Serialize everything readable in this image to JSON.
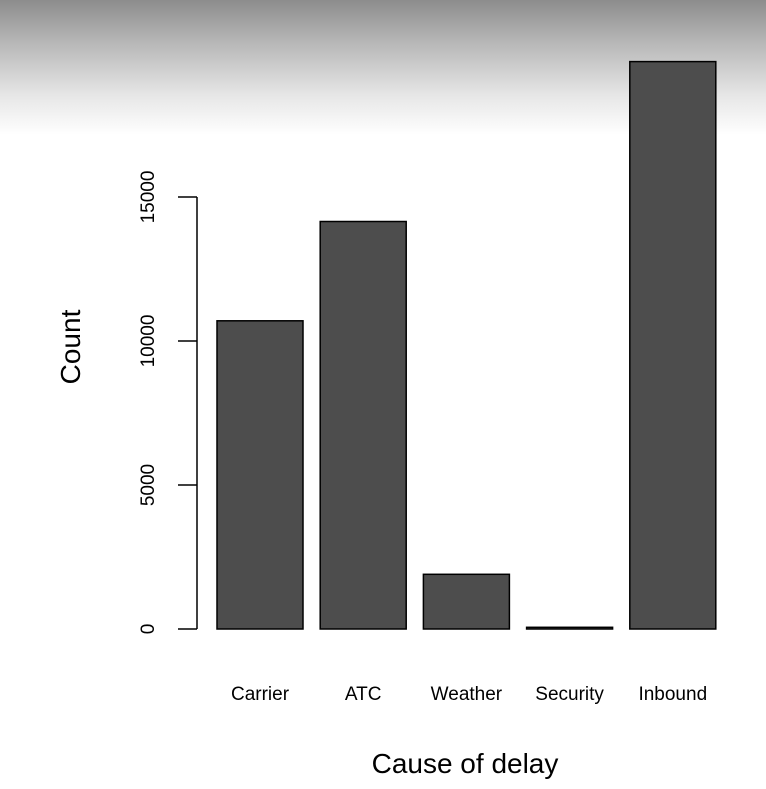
{
  "chart_data": {
    "type": "bar",
    "categories": [
      "Carrier",
      "ATC",
      "Weather",
      "Security",
      "Inbound"
    ],
    "values": [
      10700,
      14150,
      1900,
      60,
      19700
    ],
    "xlabel": "Cause of delay",
    "ylabel": "Count",
    "yticks": [
      0,
      5000,
      10000,
      15000
    ],
    "ylim": [
      0,
      19700
    ],
    "bar_color": "#4d4d4d",
    "grid": false,
    "legend": "none"
  }
}
